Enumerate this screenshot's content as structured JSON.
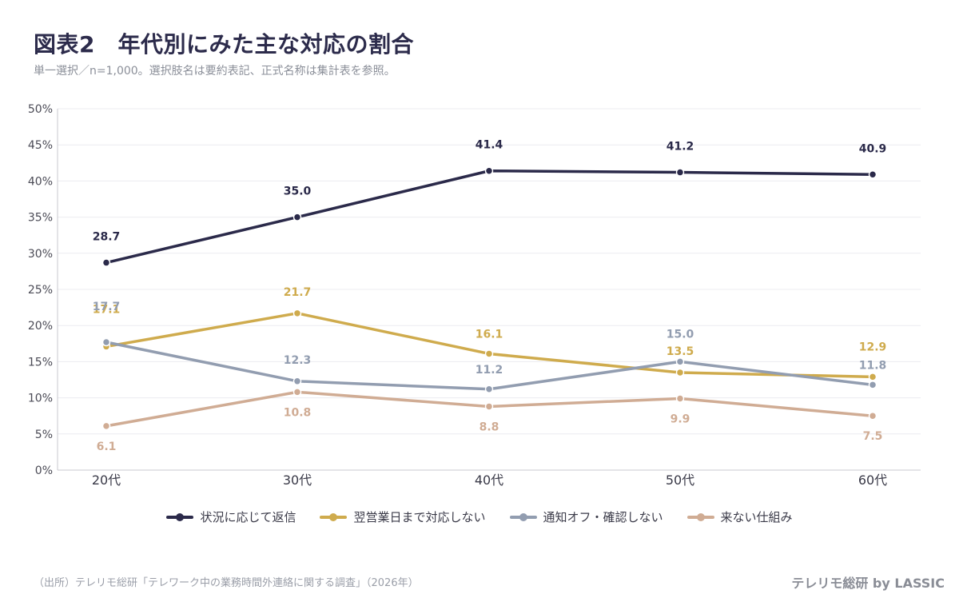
{
  "title": "図表2　年代別にみた主な対応の割合",
  "subtitle": "単一選択／n=1,000。選択肢名は要約表記、正式名称は集計表を参照。",
  "source": "（出所）テレリモ総研「テレワーク中の業務時間外連絡に関する調査」（2026年）",
  "brand": "テレリモ総研 by LASSIC",
  "chart_data": {
    "type": "line",
    "categories": [
      "20代",
      "30代",
      "40代",
      "50代",
      "60代"
    ],
    "ylim": [
      0,
      50
    ],
    "yticks": [
      "0%",
      "5%",
      "10%",
      "15%",
      "20%",
      "25%",
      "30%",
      "35%",
      "40%",
      "45%",
      "50%"
    ],
    "grid": true,
    "legend_position": "bottom",
    "series": [
      {
        "name": "状況に応じて返信",
        "values": [
          28.7,
          35.0,
          41.4,
          41.2,
          40.9
        ],
        "color": "#2b2a4a",
        "labels": [
          "28.7",
          "35.0",
          "41.4",
          "41.2",
          "40.9"
        ]
      },
      {
        "name": "翌営業日まで対応しない",
        "values": [
          17.1,
          21.7,
          16.1,
          13.5,
          12.9
        ],
        "color": "#cfab4d",
        "labels": [
          "17.1",
          "21.7",
          "16.1",
          "13.5",
          "12.9"
        ]
      },
      {
        "name": "通知オフ・確認しない",
        "values": [
          17.7,
          12.3,
          11.2,
          15.0,
          11.8
        ],
        "color": "#929db0",
        "labels": [
          "17.7",
          "12.3",
          "11.2",
          "15.0",
          "11.8"
        ]
      },
      {
        "name": "来ない仕組み",
        "values": [
          6.1,
          10.8,
          8.8,
          9.9,
          7.5
        ],
        "color": "#d0ac94",
        "labels": [
          "6.1",
          "10.8",
          "8.8",
          "9.9",
          "7.5"
        ]
      }
    ]
  }
}
